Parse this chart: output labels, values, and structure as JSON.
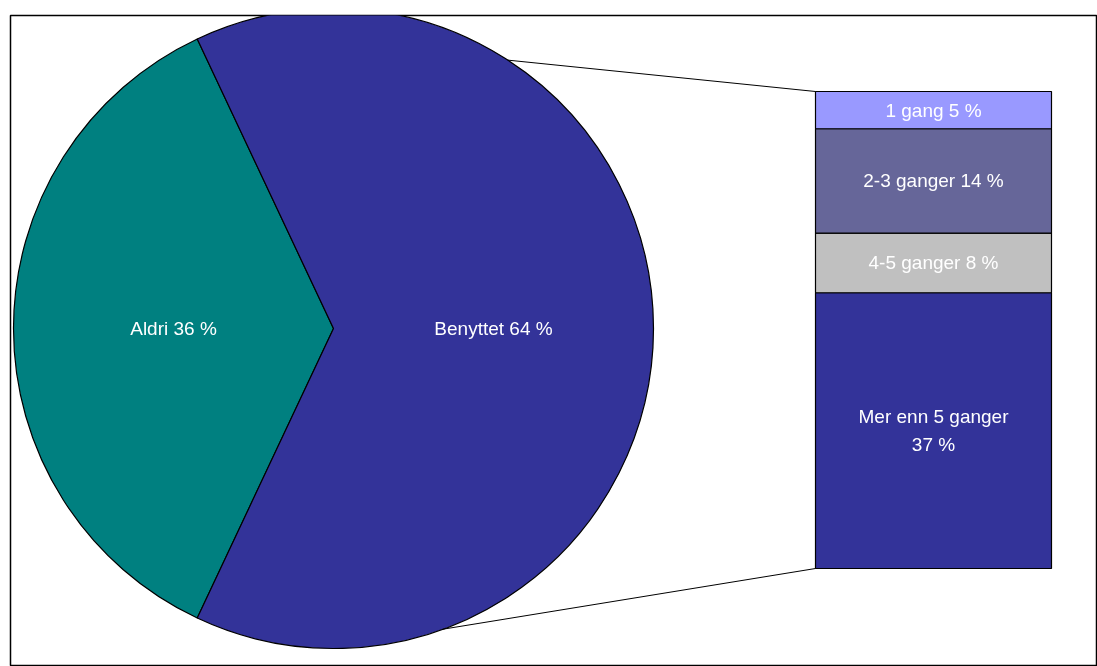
{
  "chart_data": [
    {
      "type": "pie",
      "categories": [
        "Aldri",
        "Benyttet"
      ],
      "values": [
        36,
        64
      ],
      "colors": [
        "#008080",
        "#333399"
      ],
      "value_labels": [
        "36 %",
        "64 %"
      ]
    },
    {
      "type": "bar",
      "stacked": true,
      "categories": [
        null
      ],
      "series": [
        {
          "name": "Mer enn 5 ganger",
          "color": "#333399",
          "values": [
            37
          ],
          "value_labels": [
            "37 %"
          ]
        },
        {
          "name": "4-5 ganger",
          "color": "#c0c0c0",
          "values": [
            8
          ],
          "value_labels": [
            "8 %"
          ]
        },
        {
          "name": "2-3 ganger",
          "color": "#666699",
          "values": [
            14
          ],
          "value_labels": [
            "14 %"
          ]
        },
        {
          "name": "1 gang",
          "color": "#9999ff",
          "values": [
            5
          ],
          "value_labels": [
            "5 %"
          ]
        }
      ]
    }
  ]
}
